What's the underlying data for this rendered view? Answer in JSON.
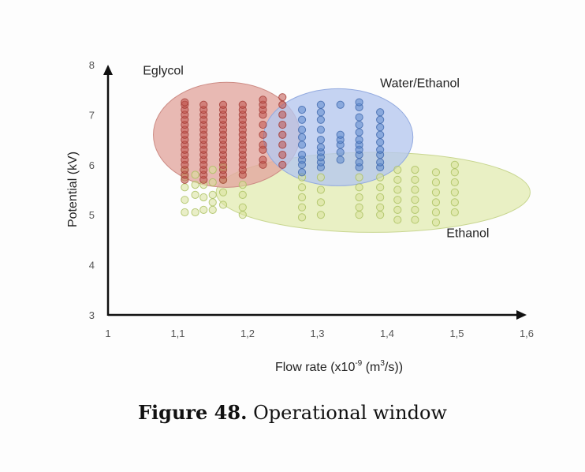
{
  "caption": {
    "number": "Figure 48.",
    "text": "Operational window"
  },
  "chart_data": {
    "type": "scatter",
    "xlabel_main": "Flow rate (x10",
    "xlabel_exp": "-9",
    "xlabel_mid": " (m",
    "xlabel_exp2": "3",
    "xlabel_end": "/s))",
    "ylabel": "Potential (kV)",
    "xlim": [
      1,
      1.6
    ],
    "ylim": [
      3,
      8
    ],
    "x_ticks": [
      1,
      1.1,
      1.2,
      1.3,
      1.4,
      1.5,
      1.6
    ],
    "x_tick_labels": [
      "1",
      "1,1",
      "1,2",
      "1,3",
      "1,4",
      "1,5",
      "1,6"
    ],
    "y_ticks": [
      3,
      4,
      5,
      6,
      7,
      8
    ],
    "y_tick_labels": [
      "3",
      "4",
      "5",
      "6",
      "7",
      "8"
    ],
    "regions": [
      {
        "name": "Ethanol",
        "cx": 1.38,
        "cy": 5.45,
        "rx": 0.225,
        "ry": 0.8,
        "fill": "#e2ebb0",
        "stroke": "#c8d690",
        "opacity": 0.75
      },
      {
        "name": "Eglycol",
        "cx": 1.17,
        "cy": 6.6,
        "rx": 0.105,
        "ry": 1.05,
        "fill": "#e2a8a0",
        "stroke": "#cd8c85",
        "opacity": 0.8
      },
      {
        "name": "Water/Ethanol",
        "cx": 1.33,
        "cy": 6.55,
        "rx": 0.107,
        "ry": 0.97,
        "fill": "#b5c6ee",
        "stroke": "#93aadf",
        "opacity": 0.78
      }
    ],
    "series": [
      {
        "name": "Eglycol",
        "color": "#c0524a",
        "stroke": "#a23a33",
        "columns": [
          {
            "x": 1.11,
            "y": [
              5.7,
              5.8,
              5.9,
              6.0,
              6.1,
              6.2,
              6.3,
              6.4,
              6.5,
              6.6,
              6.7,
              6.8,
              6.9,
              7.0,
              7.1,
              7.2,
              7.25
            ]
          },
          {
            "x": 1.137,
            "y": [
              5.7,
              5.8,
              5.9,
              6.0,
              6.1,
              6.2,
              6.3,
              6.4,
              6.5,
              6.6,
              6.7,
              6.8,
              6.9,
              7.0,
              7.1,
              7.2
            ]
          },
          {
            "x": 1.165,
            "y": [
              5.7,
              5.8,
              5.9,
              6.0,
              6.1,
              6.2,
              6.3,
              6.4,
              6.5,
              6.6,
              6.7,
              6.8,
              6.9,
              7.0,
              7.1,
              7.2
            ]
          },
          {
            "x": 1.193,
            "y": [
              5.8,
              5.9,
              6.0,
              6.1,
              6.2,
              6.3,
              6.4,
              6.5,
              6.6,
              6.7,
              6.8,
              6.9,
              7.0,
              7.1,
              7.2
            ]
          },
          {
            "x": 1.222,
            "y": [
              6.0,
              6.1,
              6.3,
              6.4,
              6.6,
              6.8,
              7.0,
              7.1,
              7.2,
              7.3
            ]
          },
          {
            "x": 1.25,
            "y": [
              6.0,
              6.2,
              6.4,
              6.6,
              6.8,
              7.0,
              7.2,
              7.35
            ]
          }
        ]
      },
      {
        "name": "Water/Ethanol",
        "color": "#5a86cc",
        "stroke": "#3e68ad",
        "columns": [
          {
            "x": 1.278,
            "y": [
              5.85,
              6.0,
              6.1,
              6.2,
              6.4,
              6.55,
              6.7,
              6.9,
              7.1
            ]
          },
          {
            "x": 1.305,
            "y": [
              5.95,
              6.05,
              6.15,
              6.25,
              6.35,
              6.5,
              6.7,
              6.9,
              7.05,
              7.2
            ]
          },
          {
            "x": 1.333,
            "y": [
              6.1,
              6.25,
              6.4,
              6.5,
              6.6,
              7.2
            ]
          },
          {
            "x": 1.36,
            "y": [
              5.95,
              6.05,
              6.2,
              6.3,
              6.4,
              6.5,
              6.65,
              6.8,
              6.95,
              7.15,
              7.25
            ]
          },
          {
            "x": 1.39,
            "y": [
              5.95,
              6.05,
              6.2,
              6.3,
              6.45,
              6.6,
              6.75,
              6.9,
              7.05
            ]
          }
        ]
      },
      {
        "name": "Ethanol",
        "color": "#d9e29a",
        "stroke": "#a9bf5e",
        "columns": [
          {
            "x": 1.11,
            "y": [
              5.05,
              5.3,
              5.55,
              5.75,
              5.9
            ]
          },
          {
            "x": 1.125,
            "y": [
              5.05,
              5.4,
              5.6,
              5.8
            ]
          },
          {
            "x": 1.137,
            "y": [
              5.1,
              5.35,
              5.6
            ]
          },
          {
            "x": 1.15,
            "y": [
              5.1,
              5.25,
              5.4,
              5.65,
              5.9
            ]
          },
          {
            "x": 1.165,
            "y": [
              5.2,
              5.45,
              5.7,
              5.95
            ]
          },
          {
            "x": 1.193,
            "y": [
              5.0,
              5.15,
              5.4,
              5.6
            ]
          },
          {
            "x": 1.278,
            "y": [
              4.95,
              5.15,
              5.35,
              5.55,
              5.75
            ]
          },
          {
            "x": 1.305,
            "y": [
              5.0,
              5.25,
              5.5,
              5.75
            ]
          },
          {
            "x": 1.36,
            "y": [
              5.0,
              5.15,
              5.35,
              5.55,
              5.75
            ]
          },
          {
            "x": 1.39,
            "y": [
              5.0,
              5.15,
              5.35,
              5.55,
              5.75
            ]
          },
          {
            "x": 1.415,
            "y": [
              4.9,
              5.1,
              5.3,
              5.5,
              5.7,
              5.9
            ]
          },
          {
            "x": 1.44,
            "y": [
              4.9,
              5.1,
              5.3,
              5.5,
              5.7,
              5.9
            ]
          },
          {
            "x": 1.47,
            "y": [
              4.85,
              5.05,
              5.25,
              5.45,
              5.65,
              5.85
            ]
          },
          {
            "x": 1.497,
            "y": [
              5.05,
              5.25,
              5.45,
              5.65,
              5.85,
              6.0
            ]
          }
        ]
      }
    ],
    "region_labels": [
      {
        "text": "Eglycol",
        "x": 1.05,
        "y": 7.8
      },
      {
        "text": "Water/Ethanol",
        "x": 1.39,
        "y": 7.55
      },
      {
        "text": "Ethanol",
        "x": 1.485,
        "y": 4.55
      }
    ]
  }
}
